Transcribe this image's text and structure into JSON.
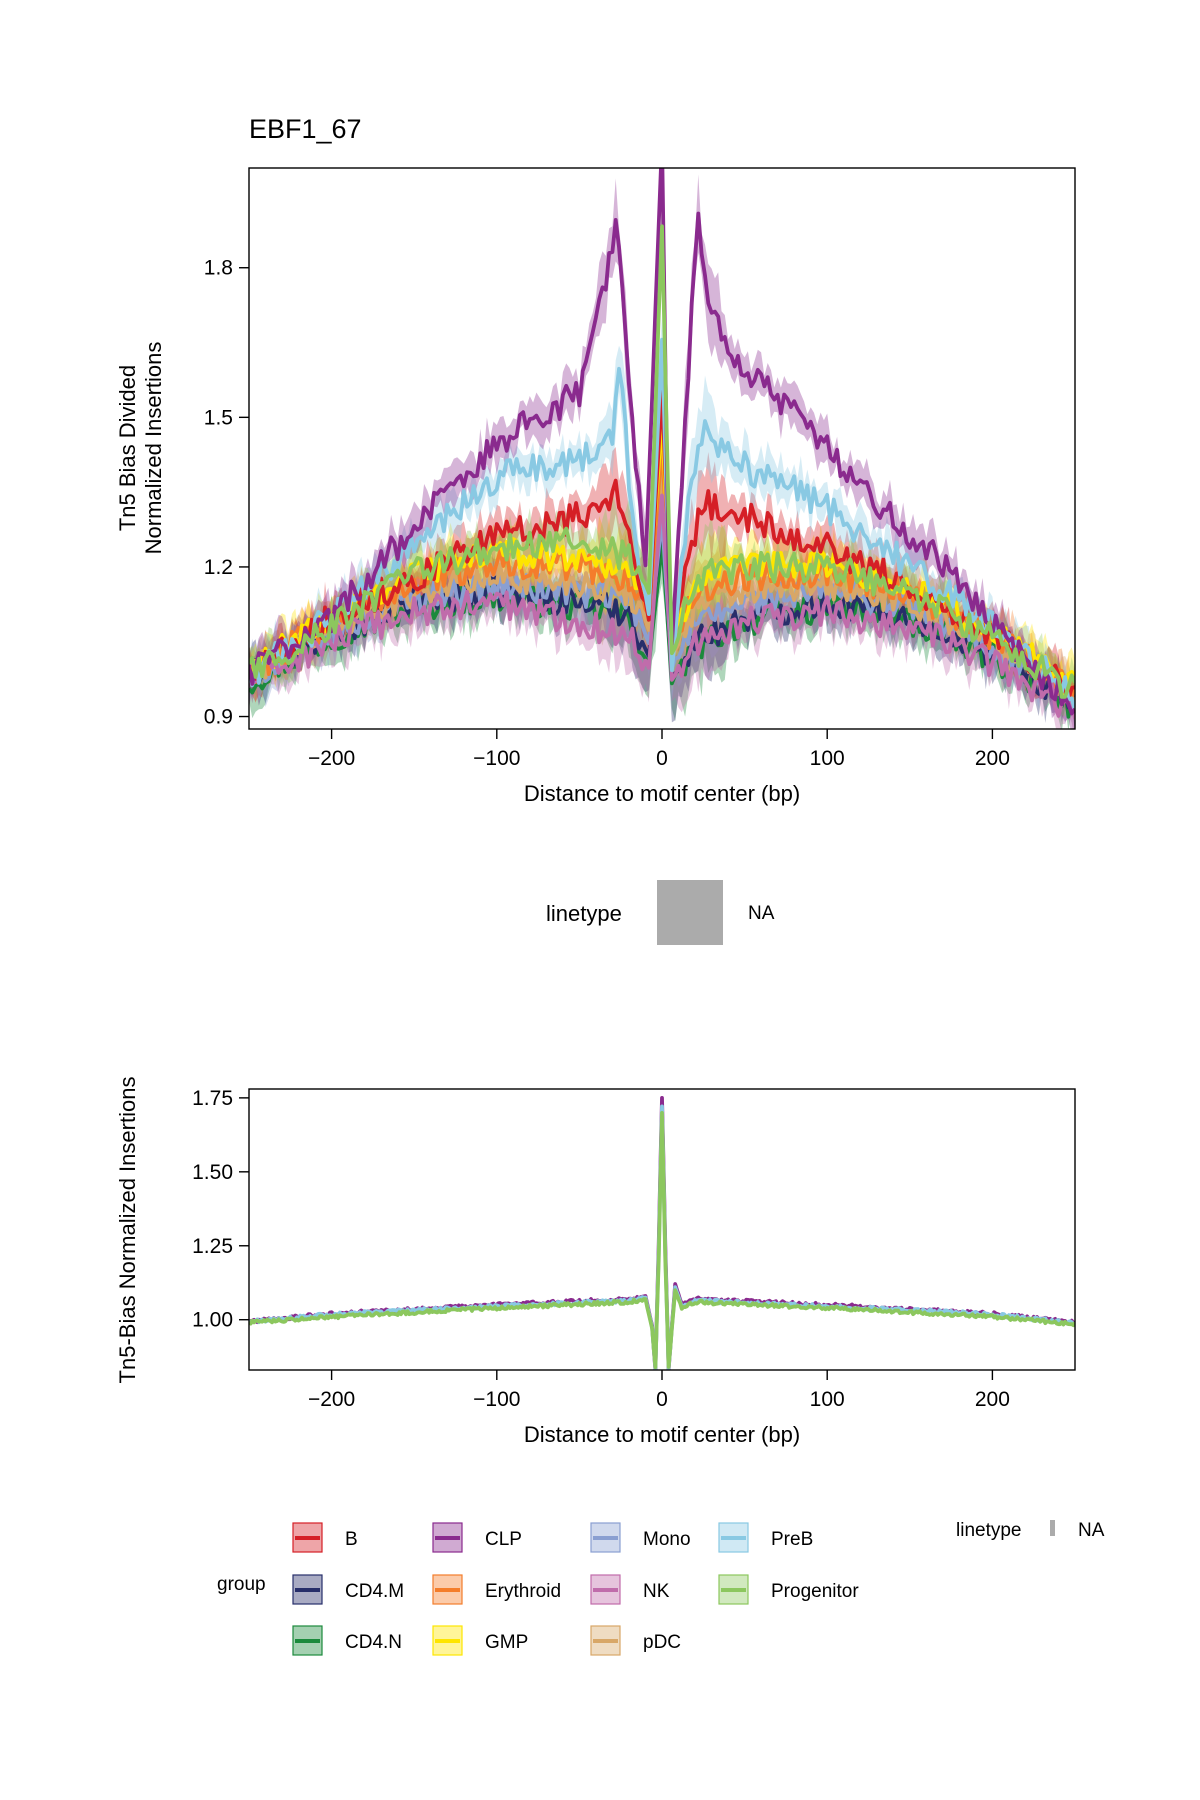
{
  "chart_data": [
    {
      "type": "line",
      "title": "EBF1_67",
      "xlabel": "Distance to motif center (bp)",
      "ylabel_line1": "Tn5 Bias Divided",
      "ylabel_line2": "Normalized Insertions",
      "xlim": [
        -250,
        250
      ],
      "ylim": [
        0.875,
        2.0
      ],
      "x_ticks": [
        -200,
        -100,
        0,
        100,
        200
      ],
      "x_tick_labels": [
        "−200",
        "−100",
        "0",
        "100",
        "200"
      ],
      "y_ticks": [
        0.9,
        1.2,
        1.5,
        1.8
      ],
      "y_tick_labels": [
        "0.9",
        "1.2",
        "1.5",
        "1.8"
      ],
      "ribbons": true,
      "series": [
        {
          "name": "CD4.N",
          "color": "#1B8A3C",
          "keypoints": [
            [
              -250,
              0.97
            ],
            [
              -200,
              1.06
            ],
            [
              -150,
              1.12
            ],
            [
              -100,
              1.14
            ],
            [
              -50,
              1.12
            ],
            [
              -20,
              1.1
            ],
            [
              -8,
              1.0
            ],
            [
              0,
              1.25
            ],
            [
              6,
              0.97
            ],
            [
              20,
              1.04
            ],
            [
              50,
              1.09
            ],
            [
              100,
              1.12
            ],
            [
              150,
              1.09
            ],
            [
              200,
              1.02
            ],
            [
              250,
              0.92
            ]
          ]
        },
        {
          "name": "CD4.M",
          "color": "#272E6A",
          "keypoints": [
            [
              -250,
              0.98
            ],
            [
              -200,
              1.07
            ],
            [
              -150,
              1.13
            ],
            [
              -100,
              1.15
            ],
            [
              -50,
              1.13
            ],
            [
              -20,
              1.11
            ],
            [
              -8,
              1.02
            ],
            [
              0,
              1.3
            ],
            [
              6,
              0.98
            ],
            [
              20,
              1.05
            ],
            [
              50,
              1.1
            ],
            [
              100,
              1.13
            ],
            [
              150,
              1.1
            ],
            [
              200,
              1.03
            ],
            [
              250,
              0.93
            ]
          ]
        },
        {
          "name": "Mono",
          "color": "#8A9FD1",
          "keypoints": [
            [
              -250,
              0.98
            ],
            [
              -200,
              1.07
            ],
            [
              -150,
              1.14
            ],
            [
              -100,
              1.16
            ],
            [
              -50,
              1.15
            ],
            [
              -20,
              1.13
            ],
            [
              -8,
              1.05
            ],
            [
              0,
              1.3
            ],
            [
              6,
              1.0
            ],
            [
              20,
              1.08
            ],
            [
              50,
              1.13
            ],
            [
              100,
              1.15
            ],
            [
              150,
              1.12
            ],
            [
              200,
              1.04
            ],
            [
              250,
              0.94
            ]
          ]
        },
        {
          "name": "pDC",
          "color": "#D8A767",
          "keypoints": [
            [
              -250,
              0.99
            ],
            [
              -200,
              1.08
            ],
            [
              -150,
              1.15
            ],
            [
              -100,
              1.18
            ],
            [
              -50,
              1.17
            ],
            [
              -20,
              1.15
            ],
            [
              -8,
              1.08
            ],
            [
              0,
              1.4
            ],
            [
              6,
              1.02
            ],
            [
              20,
              1.12
            ],
            [
              50,
              1.15
            ],
            [
              100,
              1.16
            ],
            [
              150,
              1.13
            ],
            [
              200,
              1.05
            ],
            [
              250,
              0.95
            ]
          ]
        },
        {
          "name": "Erythroid",
          "color": "#F47D2B",
          "keypoints": [
            [
              -250,
              0.99
            ],
            [
              -200,
              1.09
            ],
            [
              -150,
              1.17
            ],
            [
              -100,
              1.21
            ],
            [
              -50,
              1.2
            ],
            [
              -20,
              1.18
            ],
            [
              -8,
              1.1
            ],
            [
              0,
              1.45
            ],
            [
              6,
              1.04
            ],
            [
              20,
              1.15
            ],
            [
              50,
              1.18
            ],
            [
              100,
              1.19
            ],
            [
              150,
              1.15
            ],
            [
              200,
              1.06
            ],
            [
              250,
              0.96
            ]
          ]
        },
        {
          "name": "GMP",
          "color": "#FEE500",
          "keypoints": [
            [
              -250,
              0.99
            ],
            [
              -200,
              1.1
            ],
            [
              -150,
              1.19
            ],
            [
              -100,
              1.23
            ],
            [
              -50,
              1.22
            ],
            [
              -20,
              1.2
            ],
            [
              -8,
              1.12
            ],
            [
              0,
              1.5
            ],
            [
              6,
              1.06
            ],
            [
              20,
              1.17
            ],
            [
              50,
              1.2
            ],
            [
              100,
              1.21
            ],
            [
              150,
              1.16
            ],
            [
              200,
              1.07
            ],
            [
              250,
              0.96
            ]
          ]
        },
        {
          "name": "NK",
          "color": "#C06CAB",
          "keypoints": [
            [
              -250,
              0.97
            ],
            [
              -200,
              1.05
            ],
            [
              -150,
              1.11
            ],
            [
              -100,
              1.13
            ],
            [
              -50,
              1.09
            ],
            [
              -20,
              1.06
            ],
            [
              -8,
              1.0
            ],
            [
              0,
              1.35
            ],
            [
              6,
              0.98
            ],
            [
              20,
              1.05
            ],
            [
              50,
              1.09
            ],
            [
              100,
              1.11
            ],
            [
              150,
              1.08
            ],
            [
              200,
              1.01
            ],
            [
              250,
              0.91
            ]
          ]
        },
        {
          "name": "B",
          "color": "#D51F26",
          "keypoints": [
            [
              -250,
              0.99
            ],
            [
              -200,
              1.1
            ],
            [
              -150,
              1.18
            ],
            [
              -100,
              1.26
            ],
            [
              -50,
              1.3
            ],
            [
              -25,
              1.35
            ],
            [
              -15,
              1.2
            ],
            [
              -8,
              1.1
            ],
            [
              0,
              1.55
            ],
            [
              6,
              1.05
            ],
            [
              15,
              1.2
            ],
            [
              25,
              1.33
            ],
            [
              50,
              1.3
            ],
            [
              100,
              1.24
            ],
            [
              150,
              1.16
            ],
            [
              200,
              1.07
            ],
            [
              250,
              0.95
            ]
          ]
        },
        {
          "name": "PreB",
          "color": "#89C9E3",
          "keypoints": [
            [
              -250,
              0.98
            ],
            [
              -200,
              1.1
            ],
            [
              -150,
              1.24
            ],
            [
              -100,
              1.38
            ],
            [
              -50,
              1.42
            ],
            [
              -30,
              1.45
            ],
            [
              -25,
              1.62
            ],
            [
              -20,
              1.35
            ],
            [
              -8,
              1.1
            ],
            [
              0,
              1.65
            ],
            [
              6,
              1.0
            ],
            [
              15,
              1.3
            ],
            [
              25,
              1.48
            ],
            [
              50,
              1.4
            ],
            [
              100,
              1.32
            ],
            [
              150,
              1.2
            ],
            [
              200,
              1.08
            ],
            [
              250,
              0.94
            ]
          ]
        },
        {
          "name": "CLP",
          "color": "#8A2A8E",
          "keypoints": [
            [
              -250,
              0.99
            ],
            [
              -200,
              1.1
            ],
            [
              -150,
              1.28
            ],
            [
              -120,
              1.38
            ],
            [
              -100,
              1.45
            ],
            [
              -75,
              1.5
            ],
            [
              -50,
              1.55
            ],
            [
              -40,
              1.68
            ],
            [
              -27,
              1.9
            ],
            [
              -20,
              1.55
            ],
            [
              -10,
              1.2
            ],
            [
              0,
              2.05
            ],
            [
              5,
              0.98
            ],
            [
              15,
              1.55
            ],
            [
              22,
              1.9
            ],
            [
              30,
              1.7
            ],
            [
              50,
              1.6
            ],
            [
              75,
              1.52
            ],
            [
              100,
              1.44
            ],
            [
              125,
              1.35
            ],
            [
              150,
              1.26
            ],
            [
              175,
              1.2
            ],
            [
              200,
              1.08
            ],
            [
              250,
              0.92
            ]
          ]
        },
        {
          "name": "Progenitor",
          "color": "#8CC75E",
          "keypoints": [
            [
              -250,
              0.99
            ],
            [
              -200,
              1.08
            ],
            [
              -150,
              1.19
            ],
            [
              -100,
              1.24
            ],
            [
              -50,
              1.25
            ],
            [
              -20,
              1.22
            ],
            [
              -8,
              1.15
            ],
            [
              0,
              1.88
            ],
            [
              6,
              1.02
            ],
            [
              20,
              1.18
            ],
            [
              50,
              1.2
            ],
            [
              100,
              1.2
            ],
            [
              150,
              1.15
            ],
            [
              200,
              1.06
            ],
            [
              250,
              0.95
            ]
          ]
        }
      ]
    },
    {
      "type": "line",
      "xlabel": "Distance to motif center (bp)",
      "ylabel": "Tn5-Bias Normalized Insertions",
      "xlim": [
        -250,
        250
      ],
      "ylim": [
        0.83,
        1.78
      ],
      "x_ticks": [
        -200,
        -100,
        0,
        100,
        200
      ],
      "x_tick_labels": [
        "−200",
        "−100",
        "0",
        "100",
        "200"
      ],
      "y_ticks": [
        1.0,
        1.25,
        1.5,
        1.75
      ],
      "y_tick_labels": [
        "1.00",
        "1.25",
        "1.50",
        "1.75"
      ],
      "series": [
        {
          "name": "CLP",
          "color": "#8A2A8E",
          "keypoints": [
            [
              -250,
              0.995
            ],
            [
              -200,
              1.02
            ],
            [
              -100,
              1.05
            ],
            [
              -20,
              1.07
            ],
            [
              -10,
              1.08
            ],
            [
              -6,
              0.98
            ],
            [
              -4,
              0.83
            ],
            [
              -2,
              1.25
            ],
            [
              0,
              1.75
            ],
            [
              2,
              1.25
            ],
            [
              4,
              0.83
            ],
            [
              6,
              0.98
            ],
            [
              8,
              1.12
            ],
            [
              12,
              1.05
            ],
            [
              20,
              1.07
            ],
            [
              100,
              1.05
            ],
            [
              200,
              1.02
            ],
            [
              250,
              0.99
            ]
          ]
        },
        {
          "name": "PreB",
          "color": "#89C9E3",
          "keypoints": [
            [
              -250,
              0.993
            ],
            [
              -200,
              1.018
            ],
            [
              -100,
              1.045
            ],
            [
              -20,
              1.065
            ],
            [
              -10,
              1.075
            ],
            [
              -6,
              0.975
            ],
            [
              -4,
              0.835
            ],
            [
              -2,
              1.22
            ],
            [
              0,
              1.72
            ],
            [
              2,
              1.22
            ],
            [
              4,
              0.835
            ],
            [
              6,
              0.975
            ],
            [
              8,
              1.11
            ],
            [
              12,
              1.045
            ],
            [
              20,
              1.065
            ],
            [
              100,
              1.045
            ],
            [
              200,
              1.018
            ],
            [
              250,
              0.988
            ]
          ]
        },
        {
          "name": "Progenitor",
          "color": "#8CC75E",
          "keypoints": [
            [
              -250,
              0.99
            ],
            [
              -200,
              1.01
            ],
            [
              -100,
              1.04
            ],
            [
              -20,
              1.06
            ],
            [
              -10,
              1.07
            ],
            [
              -6,
              0.97
            ],
            [
              -4,
              0.84
            ],
            [
              -2,
              1.2
            ],
            [
              0,
              1.7
            ],
            [
              2,
              1.2
            ],
            [
              4,
              0.84
            ],
            [
              6,
              0.97
            ],
            [
              8,
              1.1
            ],
            [
              12,
              1.04
            ],
            [
              20,
              1.06
            ],
            [
              100,
              1.04
            ],
            [
              200,
              1.01
            ],
            [
              250,
              0.985
            ]
          ]
        }
      ]
    }
  ],
  "top_legend": {
    "title": "linetype",
    "label": "NA",
    "color": "#ABABAB"
  },
  "bottom_legend": {
    "group_title": "group",
    "items": [
      {
        "name": "B",
        "color": "#D51F26"
      },
      {
        "name": "CLP",
        "color": "#8A2A8E"
      },
      {
        "name": "Mono",
        "color": "#8A9FD1"
      },
      {
        "name": "PreB",
        "color": "#89C9E3"
      },
      {
        "name": "CD4.M",
        "color": "#272E6A"
      },
      {
        "name": "Erythroid",
        "color": "#F47D2B"
      },
      {
        "name": "NK",
        "color": "#C06CAB"
      },
      {
        "name": "Progenitor",
        "color": "#8CC75E"
      },
      {
        "name": "CD4.N",
        "color": "#1B8A3C"
      },
      {
        "name": "GMP",
        "color": "#FEE500"
      },
      {
        "name": "pDC",
        "color": "#D8A767"
      }
    ],
    "linetype_title": "linetype",
    "linetype_label": "NA",
    "linetype_color": "#ABABAB"
  }
}
